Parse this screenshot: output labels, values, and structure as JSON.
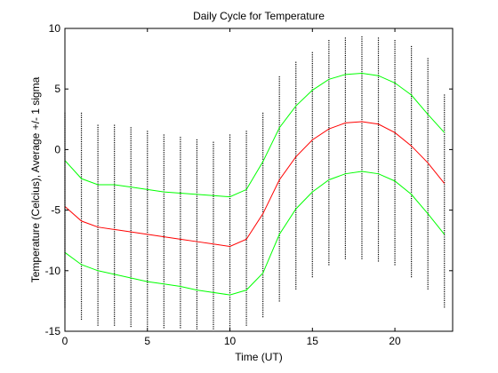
{
  "chart_data": {
    "type": "line",
    "title": "Daily Cycle for Temperature",
    "xlabel": "Time (UT)",
    "ylabel": "Temperature (Celcius), Average +/- 1 sigma",
    "xlim": [
      0,
      23.5
    ],
    "ylim": [
      -15,
      10
    ],
    "xticks": [
      0,
      5,
      10,
      15,
      20
    ],
    "yticks": [
      -15,
      -10,
      -5,
      0,
      5,
      10
    ],
    "grid": false,
    "x": [
      0,
      1,
      2,
      3,
      4,
      5,
      6,
      7,
      8,
      9,
      10,
      11,
      12,
      13,
      14,
      15,
      16,
      17,
      18,
      19,
      20,
      21,
      22,
      23
    ],
    "series": [
      {
        "color": "#ff0000",
        "values": [
          -4.7,
          -5.9,
          -6.4,
          -6.6,
          -6.8,
          -7.0,
          -7.2,
          -7.4,
          -7.6,
          -7.8,
          -8.0,
          -7.4,
          -5.3,
          -2.5,
          -0.6,
          0.8,
          1.7,
          2.2,
          2.3,
          2.1,
          1.4,
          0.3,
          -1.1,
          -2.8
        ]
      },
      {
        "color": "#00ff00",
        "values": [
          -0.9,
          -2.4,
          -2.9,
          -2.9,
          -3.1,
          -3.3,
          -3.5,
          -3.6,
          -3.7,
          -3.8,
          -3.9,
          -3.3,
          -1.0,
          1.8,
          3.6,
          4.9,
          5.8,
          6.2,
          6.3,
          6.1,
          5.5,
          4.5,
          2.9,
          1.4
        ]
      },
      {
        "color": "#00ff00",
        "values": [
          -8.5,
          -9.5,
          -10.0,
          -10.3,
          -10.6,
          -10.9,
          -11.1,
          -11.3,
          -11.6,
          -11.8,
          -12.0,
          -11.6,
          -10.2,
          -7.0,
          -4.9,
          -3.5,
          -2.5,
          -2.0,
          -1.8,
          -2.0,
          -2.6,
          -3.7,
          -5.3,
          -7.0
        ]
      }
    ],
    "scatter_spread": {
      "color": "#000000",
      "low": [
        -13.0,
        -14.0,
        -14.5,
        -14.5,
        -14.6,
        -14.6,
        -14.7,
        -14.7,
        -14.8,
        -14.8,
        -14.9,
        -14.5,
        -13.8,
        -12.5,
        -11.5,
        -10.5,
        -9.5,
        -9.0,
        -9.0,
        -9.2,
        -9.5,
        -10.5,
        -11.5,
        -13.0
      ],
      "high": [
        3.0,
        3.0,
        2.0,
        2.0,
        1.8,
        1.5,
        1.2,
        1.0,
        0.8,
        0.6,
        1.2,
        1.5,
        3.0,
        6.0,
        7.2,
        8.0,
        9.0,
        9.2,
        9.3,
        9.2,
        9.0,
        8.5,
        7.5,
        4.5
      ]
    }
  }
}
